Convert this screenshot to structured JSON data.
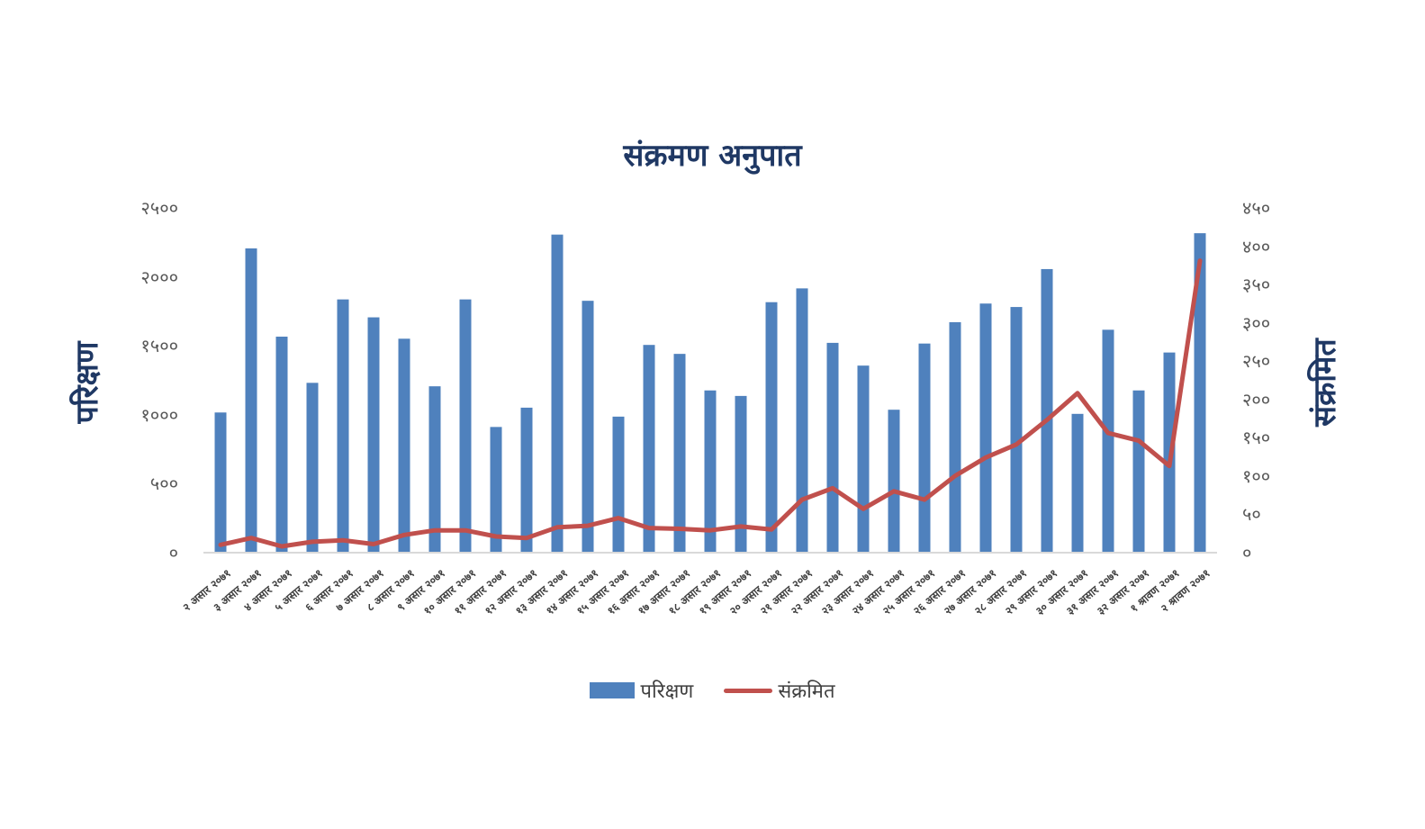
{
  "chart_data": {
    "type": "bar",
    "combo": "bar + line (dual axis)",
    "title": "संक्रमण अनुपात",
    "xlabel": "",
    "ylabel": "परिक्षण",
    "y2label": "संक्रमित",
    "ylim": [
      0,
      2500
    ],
    "y2lim": [
      0,
      450
    ],
    "yticks": [
      "०",
      "५००",
      "१०००",
      "१५००",
      "२०००",
      "२५००"
    ],
    "y2ticks": [
      "०",
      "५०",
      "१००",
      "१५०",
      "२००",
      "२५०",
      "३००",
      "३५०",
      "४००",
      "४५०"
    ],
    "grid": false,
    "legend_position": "bottom",
    "colors": {
      "bars": "#4f81bd",
      "line": "#c0504d",
      "title": "#1f3864",
      "axis_text": "#595959"
    },
    "categories": [
      "२ असार २०७१",
      "३ असार २०७१",
      "४ असार २०७१",
      "५ असार २०७१",
      "६ असार २०७१",
      "७ असार २०७१",
      "८ असार २०७१",
      "९ असार २०७१",
      "१० असार २०७१",
      "११ असार २०७१",
      "१२ असार २०७१",
      "१३ असार २०७१",
      "१४ असार २०७१",
      "१५ असार २०७१",
      "१६ असार २०७१",
      "१७ असार २०७१",
      "१८ असार २०७१",
      "१९ असार २०७१",
      "२० असार २०७१",
      "२१ असार २०७१",
      "२२ असार २०७१",
      "२३ असार २०७१",
      "२४ असार २०७१",
      "२५ असार २०७१",
      "२६ असार २०७१",
      "२७ असार २०७१",
      "२८ असार २०७१",
      "२९ असार २०७१",
      "३० असार २०७१",
      "३१ असार २०७१",
      "३२ असार २०७१",
      "१ श्रावण २०७१",
      "२ श्रावण २०७१"
    ],
    "series": [
      {
        "name": "परिक्षण",
        "type": "bar",
        "axis": "left",
        "values": [
          1010,
          2200,
          1560,
          1225,
          1830,
          1700,
          1545,
          1200,
          1830,
          905,
          1045,
          2300,
          1820,
          980,
          1500,
          1435,
          1170,
          1130,
          1810,
          1910,
          1515,
          1350,
          1030,
          1510,
          1665,
          1800,
          1775,
          2050,
          1000,
          1610,
          1170,
          1445,
          2310
        ]
      },
      {
        "name": "संक्रमित",
        "type": "line",
        "axis": "right",
        "values": [
          9,
          18,
          7,
          13,
          15,
          10,
          22,
          28,
          28,
          20,
          18,
          32,
          34,
          44,
          31,
          30,
          28,
          33,
          29,
          68,
          83,
          56,
          79,
          68,
          99,
          123,
          140,
          172,
          207,
          155,
          145,
          112,
          380
        ]
      }
    ]
  },
  "legend": {
    "bar_label": "परिक्षण",
    "line_label": "संक्रमित"
  }
}
